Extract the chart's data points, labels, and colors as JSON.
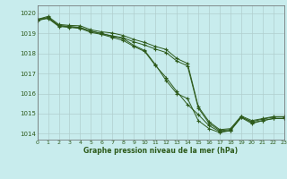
{
  "title": "Graphe pression niveau de la mer (hPa)",
  "bg_color": "#c8eced",
  "grid_color": "#b0cece",
  "line_color": "#2d5a1b",
  "xlim": [
    0,
    23
  ],
  "ylim": [
    1013.7,
    1020.4
  ],
  "yticks": [
    1014,
    1015,
    1016,
    1017,
    1018,
    1019,
    1020
  ],
  "xticks": [
    0,
    1,
    2,
    3,
    4,
    5,
    6,
    7,
    8,
    9,
    10,
    11,
    12,
    13,
    14,
    15,
    16,
    17,
    18,
    19,
    20,
    21,
    22,
    23
  ],
  "series": [
    [
      1019.7,
      1019.8,
      1019.4,
      1019.35,
      1019.3,
      1019.1,
      1019.0,
      1018.85,
      1018.75,
      1018.4,
      1018.15,
      1017.45,
      1016.65,
      1016.0,
      1015.75,
      1014.65,
      1014.25,
      1014.05,
      1014.15,
      1014.85,
      1014.55,
      1014.65,
      1014.75,
      1014.75
    ],
    [
      1019.65,
      1019.75,
      1019.35,
      1019.3,
      1019.25,
      1019.05,
      1018.95,
      1018.8,
      1018.65,
      1018.35,
      1018.1,
      1017.4,
      1016.8,
      1016.1,
      1015.45,
      1014.95,
      1014.4,
      1014.1,
      1014.15,
      1014.8,
      1014.5,
      1014.65,
      1014.75,
      1014.75
    ],
    [
      1019.7,
      1019.85,
      1019.45,
      1019.4,
      1019.38,
      1019.18,
      1019.08,
      1019.02,
      1018.9,
      1018.7,
      1018.55,
      1018.35,
      1018.2,
      1017.75,
      1017.5,
      1015.35,
      1014.6,
      1014.2,
      1014.25,
      1014.88,
      1014.65,
      1014.75,
      1014.85,
      1014.85
    ],
    [
      1019.65,
      1019.78,
      1019.38,
      1019.33,
      1019.28,
      1019.12,
      1018.98,
      1018.88,
      1018.78,
      1018.58,
      1018.42,
      1018.22,
      1018.05,
      1017.62,
      1017.38,
      1015.28,
      1014.52,
      1014.15,
      1014.2,
      1014.82,
      1014.6,
      1014.72,
      1014.82,
      1014.82
    ]
  ]
}
